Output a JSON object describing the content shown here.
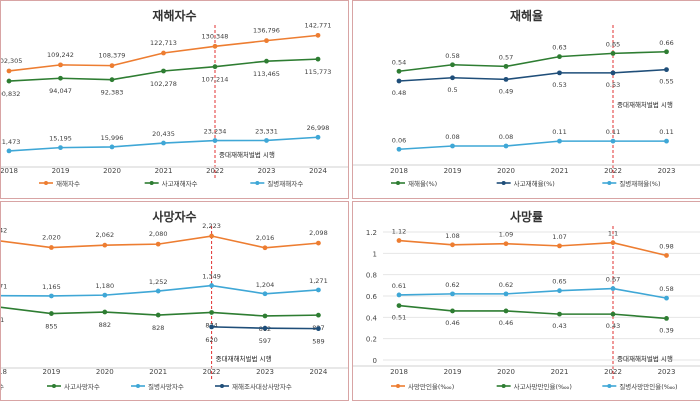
{
  "chart_data": [
    {
      "type": "line",
      "title": "재해자수",
      "categories": [
        "2018",
        "2019",
        "2020",
        "2021",
        "2022",
        "2023",
        "2024"
      ],
      "series": [
        {
          "name": "재해자수",
          "color": "#ed7d31",
          "values": [
            102305,
            109242,
            108379,
            122713,
            130348,
            136796,
            142771
          ],
          "labels": [
            "102,305",
            "109,242",
            "108,379",
            "122,713",
            "130,348",
            "136,796",
            "142,771"
          ]
        },
        {
          "name": "사고재해자수",
          "color": "#2e7d32",
          "values": [
            90832,
            94047,
            92383,
            102278,
            107214,
            113465,
            115773
          ],
          "labels": [
            "90,832",
            "94,047",
            "92,383",
            "102,278",
            "107,214",
            "113,465",
            "115,773"
          ]
        },
        {
          "name": "질병재해자수",
          "color": "#3fa7d6",
          "values": [
            11473,
            15195,
            15996,
            20435,
            23234,
            23331,
            26998
          ],
          "labels": [
            "11,473",
            "15,195",
            "15,996",
            "20,435",
            "23,234",
            "23,331",
            "26,998"
          ]
        }
      ],
      "annotation": {
        "category": "2022",
        "text": "중대재해처벌법 시행"
      },
      "show_yaxis": false
    },
    {
      "type": "line",
      "title": "재해율",
      "categories": [
        "2018",
        "2019",
        "2020",
        "2021",
        "2022",
        "2023"
      ],
      "series": [
        {
          "name": "재해율(%)",
          "color": "#2e7d32",
          "values": [
            0.54,
            0.58,
            0.57,
            0.63,
            0.65,
            0.66
          ],
          "labels": [
            "0.54",
            "0.58",
            "0.57",
            "0.63",
            "0.65",
            "0.66"
          ]
        },
        {
          "name": "사고재해율(%)",
          "color": "#1f4e79",
          "values": [
            0.48,
            0.5,
            0.49,
            0.53,
            0.53,
            0.55
          ],
          "labels": [
            "0.48",
            "0.5",
            "0.49",
            "0.53",
            "0.53",
            "0.55"
          ]
        },
        {
          "name": "질병재해율(%)",
          "color": "#3fa7d6",
          "values": [
            0.06,
            0.08,
            0.08,
            0.11,
            0.11,
            0.11
          ],
          "labels": [
            "0.06",
            "0.08",
            "0.08",
            "0.11",
            "0.11",
            "0.11"
          ]
        }
      ],
      "annotation": {
        "category": "2022",
        "text": "중대재해처벌법 시행"
      },
      "show_yaxis": false
    },
    {
      "type": "line",
      "title": "사망자수",
      "categories": [
        "2018",
        "2019",
        "2020",
        "2021",
        "2022",
        "2023",
        "2024"
      ],
      "series": [
        {
          "name": "사망자수",
          "color": "#ed7d31",
          "values": [
            2142,
            2020,
            2062,
            2080,
            2223,
            2016,
            2098
          ],
          "labels": [
            "2,142",
            "2,020",
            "2,062",
            "2,080",
            "2,223",
            "2,016",
            "2,098"
          ]
        },
        {
          "name": "사고사망자수",
          "color": "#2e7d32",
          "values": [
            971,
            855,
            882,
            828,
            874,
            812,
            827
          ],
          "labels": [
            "971",
            "855",
            "882",
            "828",
            "874",
            "812",
            "827"
          ]
        },
        {
          "name": "질병사망자수",
          "color": "#3fa7d6",
          "values": [
            1171,
            1165,
            1180,
            1252,
            1349,
            1204,
            1271
          ],
          "labels": [
            "1,171",
            "1,165",
            "1,180",
            "1,252",
            "1,349",
            "1,204",
            "1,271"
          ]
        },
        {
          "name": "재해조사대상사망자수",
          "color": "#1f4e79",
          "values": [
            null,
            null,
            null,
            null,
            620,
            597,
            589
          ],
          "labels": [
            "",
            "",
            "",
            "",
            "620",
            "597",
            "589"
          ]
        }
      ],
      "annotation": {
        "category": "2022",
        "text": "중대재해처벌법 시행"
      },
      "show_yaxis": false
    },
    {
      "type": "line",
      "title": "사망률",
      "categories": [
        "2018",
        "2019",
        "2020",
        "2021",
        "2022",
        "2023"
      ],
      "series": [
        {
          "name": "사망만인율(‱)",
          "color": "#ed7d31",
          "values": [
            1.12,
            1.08,
            1.09,
            1.07,
            1.1,
            0.98
          ],
          "labels": [
            "1.12",
            "1.08",
            "1.09",
            "1.07",
            "1.1",
            "0.98"
          ]
        },
        {
          "name": "사고사망만인율(‱)",
          "color": "#2e7d32",
          "values": [
            0.51,
            0.46,
            0.46,
            0.43,
            0.43,
            0.39
          ],
          "labels": [
            "0.51",
            "0.46",
            "0.46",
            "0.43",
            "0.43",
            "0.39"
          ]
        },
        {
          "name": "질병사망만인율(‱)",
          "color": "#3fa7d6",
          "values": [
            0.61,
            0.62,
            0.62,
            0.65,
            0.67,
            0.58
          ],
          "labels": [
            "0.61",
            "0.62",
            "0.62",
            "0.65",
            "0.67",
            "0.58"
          ]
        }
      ],
      "annotation": {
        "category": "2022",
        "text": "중대재해처벌법 시행"
      },
      "show_yaxis": true,
      "ylim": [
        0,
        1.2
      ],
      "yticks": [
        "0",
        "0.2",
        "0.4",
        "0.6",
        "0.8",
        "1",
        "1.2"
      ]
    }
  ]
}
